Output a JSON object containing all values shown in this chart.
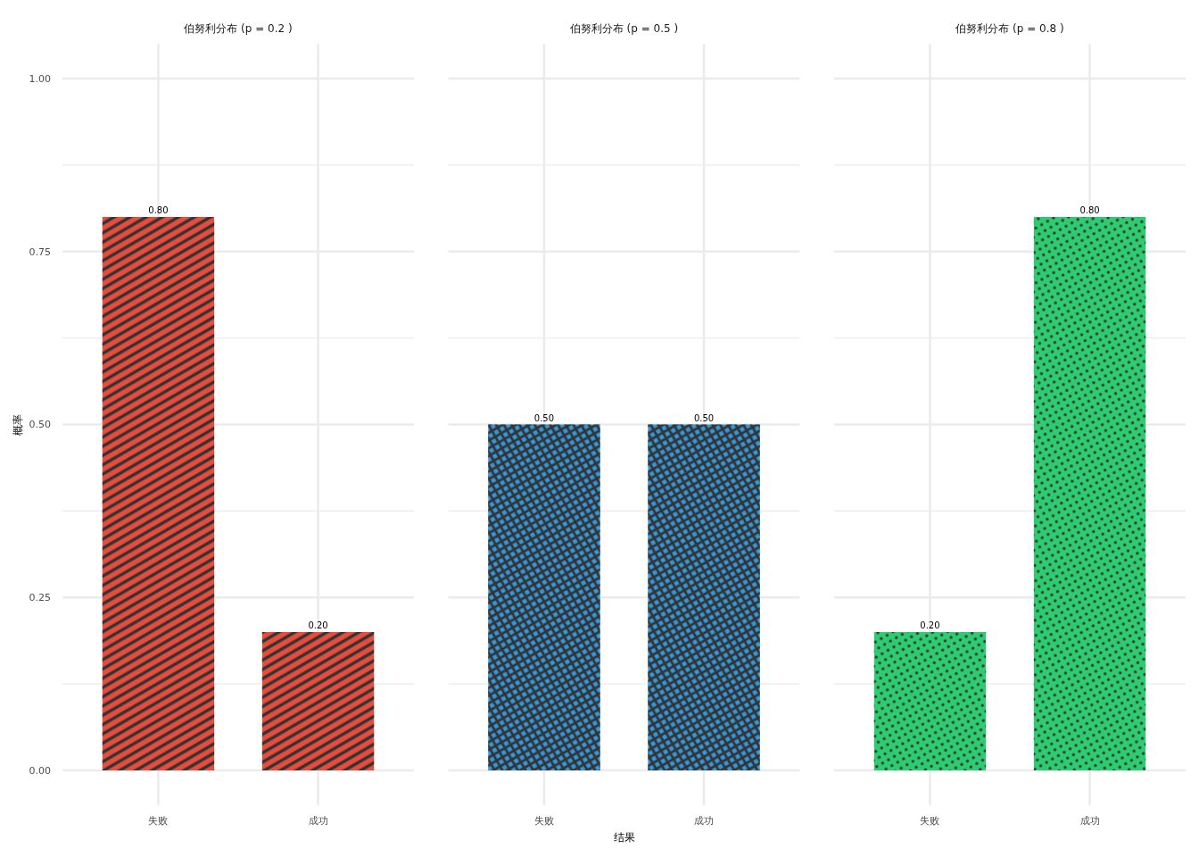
{
  "chart_data": [
    {
      "type": "bar",
      "title": "伯努利分布 (p = 0.2 )",
      "ylabel": "概率",
      "categories": [
        "失败",
        "成功"
      ],
      "values": [
        0.8,
        0.2
      ],
      "color": "#e74c3c",
      "value_labels": [
        "0.80",
        "0.20"
      ],
      "ylim": [
        -0.05,
        1.05
      ],
      "yticks": [
        {
          "value": 0,
          "label": "0.00"
        },
        {
          "value": 0.125,
          "label": null
        },
        {
          "value": 0.25,
          "label": "0.25"
        },
        {
          "value": 0.375,
          "label": null
        },
        {
          "value": 0.5,
          "label": "0.50"
        },
        {
          "value": 0.625,
          "label": null
        },
        {
          "value": 0.75,
          "label": "0.75"
        },
        {
          "value": 0.875,
          "label": null
        },
        {
          "value": 1,
          "label": "1.00"
        }
      ],
      "grid": true
    },
    {
      "type": "bar",
      "title": "伯努利分布 (p = 0.5 )",
      "xlabel": "结果",
      "categories": [
        "失败",
        "成功"
      ],
      "values": [
        0.5,
        0.5
      ],
      "color": "#3498db",
      "value_labels": [
        "0.50",
        "0.50"
      ],
      "ylim": [
        -0.05,
        1.05
      ],
      "yticks": [
        0,
        {
          "value": 0.125,
          "label": null
        },
        0.25,
        {
          "value": 0.375,
          "label": null
        },
        0.5,
        {
          "value": 0.625,
          "label": null
        },
        0.75,
        {
          "value": 0.875,
          "label": null
        },
        1
      ],
      "grid": true,
      "tick_labels": "x"
    },
    {
      "type": "bar",
      "title": "伯努利分布 (p = 0.8 )",
      "categories": [
        "失败",
        "成功"
      ],
      "values": [
        0.2,
        0.8
      ],
      "color": "#2ecc71",
      "value_labels": [
        "0.20",
        "0.80"
      ],
      "ylim": [
        -0.05,
        1.05
      ],
      "yticks": [
        0,
        {
          "value": 0.125,
          "label": null
        },
        0.25,
        {
          "value": 0.375,
          "label": null
        },
        0.5,
        {
          "value": 0.625,
          "label": null
        },
        0.75,
        {
          "value": 0.875,
          "label": null
        },
        1
      ],
      "grid": true,
      "tick_labels": "x"
    }
  ]
}
